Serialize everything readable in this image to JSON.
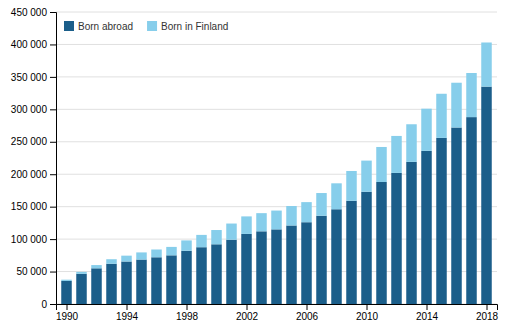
{
  "chart_data": {
    "type": "bar",
    "stacked": true,
    "x": [
      1990,
      1991,
      1992,
      1993,
      1994,
      1995,
      1996,
      1997,
      1998,
      1999,
      2000,
      2001,
      2002,
      2003,
      2004,
      2005,
      2006,
      2007,
      2008,
      2009,
      2010,
      2011,
      2012,
      2013,
      2014,
      2015,
      2016,
      2017,
      2018
    ],
    "series": [
      {
        "name": "Born abroad",
        "color": "#1b5e8a",
        "values": [
          35500,
          46500,
          55000,
          62000,
          65500,
          68500,
          72000,
          75000,
          82000,
          87500,
          92000,
          99000,
          108000,
          112000,
          115000,
          121000,
          126000,
          136000,
          146000,
          159000,
          173000,
          188000,
          202000,
          219000,
          236000,
          256000,
          272000,
          288000,
          335000
        ]
      },
      {
        "name": "Born in Finland",
        "color": "#87ceeb",
        "values": [
          2000,
          3000,
          5000,
          7000,
          9000,
          11000,
          12000,
          13000,
          16000,
          19000,
          22000,
          25000,
          27000,
          28000,
          29000,
          30000,
          31000,
          35000,
          40000,
          46000,
          48000,
          54000,
          57000,
          58000,
          65000,
          68000,
          69000,
          68000,
          68000
        ]
      }
    ],
    "xlim": [
      1989.3,
      2018.7
    ],
    "xticks": [
      1990,
      1994,
      1998,
      2002,
      2006,
      2010,
      2014,
      2018
    ],
    "ylim": [
      0,
      450000
    ],
    "yticks": [
      0,
      {
        "value": 50000,
        "label": "50 000"
      },
      {
        "value": 100000,
        "label": "100 000"
      },
      {
        "value": 150000,
        "label": "150 000"
      },
      {
        "value": 200000,
        "label": "200 000"
      },
      {
        "value": 250000,
        "label": "250 000"
      },
      {
        "value": 300000,
        "label": "300 000"
      },
      {
        "value": 350000,
        "label": "350 000"
      },
      {
        "value": 400000,
        "label": "400 000"
      },
      {
        "value": 450000,
        "label": "450 000"
      }
    ],
    "grid": true,
    "legend": "upper left"
  }
}
